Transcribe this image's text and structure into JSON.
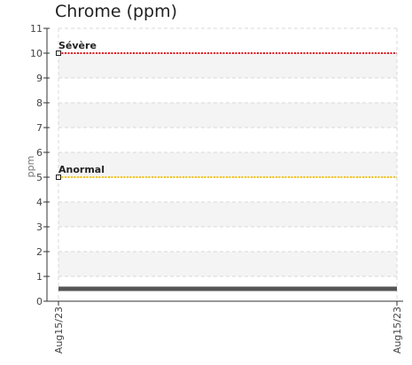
{
  "chart_data": {
    "type": "line",
    "title": "Chrome (ppm)",
    "ylabel": "ppm",
    "xlabel": "",
    "ylim": [
      0,
      11
    ],
    "yticks": [
      0,
      1,
      2,
      3,
      4,
      5,
      6,
      7,
      8,
      9,
      10,
      11
    ],
    "x": [
      "Aug15/23",
      "Aug15/23"
    ],
    "series": [
      {
        "values": [
          0.5,
          0.5
        ],
        "color": "#555555"
      }
    ],
    "thresholds": [
      {
        "label": "Sévère",
        "value": 10,
        "color": "#e8141e"
      },
      {
        "label": "Anormal",
        "value": 5,
        "color": "#f5c400"
      }
    ],
    "grid": true
  }
}
